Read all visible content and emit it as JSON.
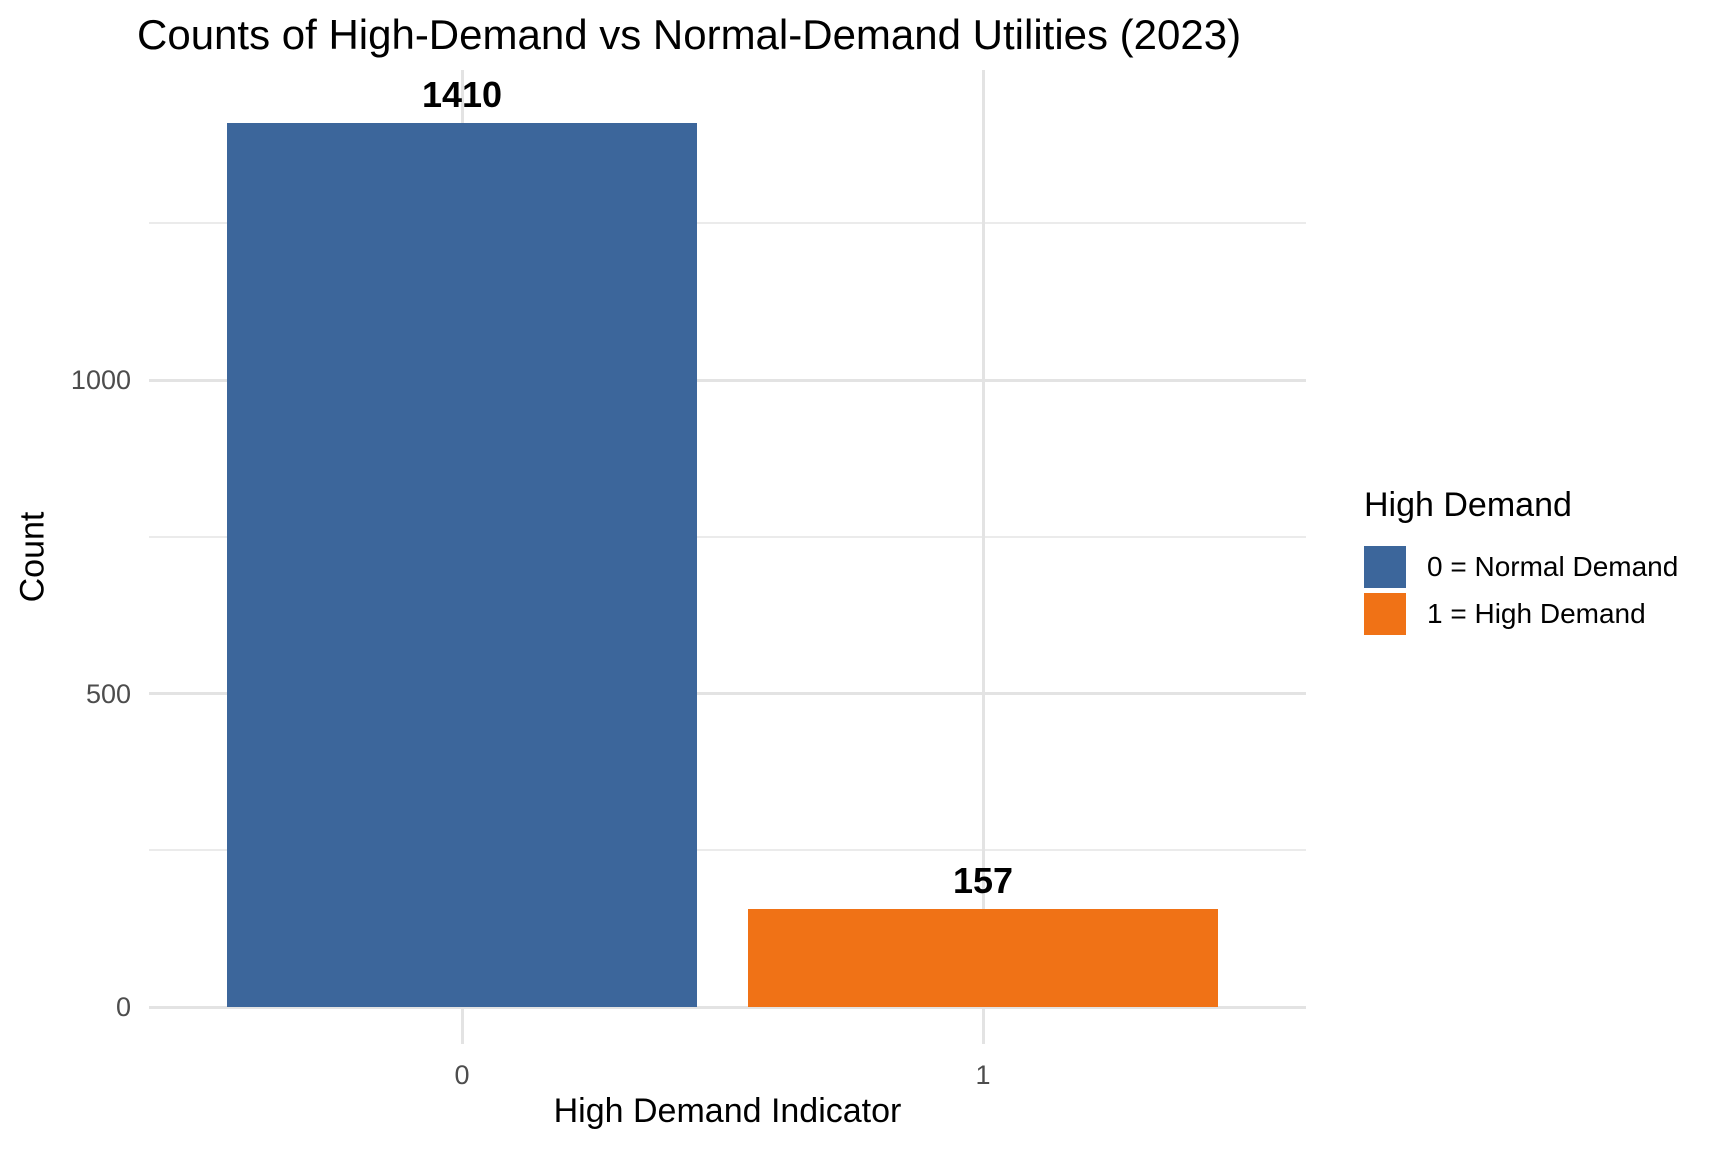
{
  "chart_data": {
    "type": "bar",
    "title": "Counts of High-Demand vs Normal-Demand Utilities (2023)",
    "xlabel": "High Demand Indicator",
    "ylabel": "Count",
    "categories": [
      "0",
      "1"
    ],
    "values": [
      1410,
      157
    ],
    "bar_value_labels": [
      "1410",
      "157"
    ],
    "yticks": [
      0,
      500,
      1000
    ],
    "ytick_labels": [
      "0",
      "500",
      "1000"
    ],
    "yticks_minor": [
      250,
      750,
      1250
    ],
    "ylim": [
      0,
      1490
    ],
    "grid": "horizontal major and minor gridlines plus vertical gridline at each category, light gray on white",
    "legend": {
      "title": "High Demand",
      "position": "right",
      "entries": [
        {
          "label": "0 = Normal Demand",
          "color": "#3C669B"
        },
        {
          "label": "1 = High Demand",
          "color": "#F07216"
        }
      ]
    },
    "colors": {
      "bars": [
        "#3C669B",
        "#F07216"
      ],
      "grid_major": "#E3E3E3",
      "grid_minor": "#EBEBEB",
      "tick_text": "#4D4D4D",
      "text": "#000000",
      "background": "#FFFFFF"
    }
  }
}
